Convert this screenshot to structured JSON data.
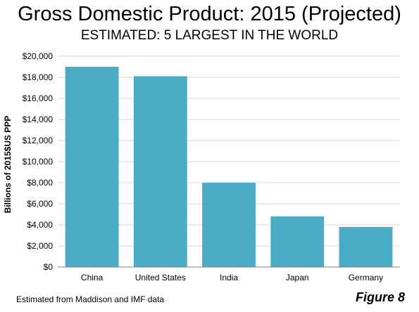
{
  "title": "Gross Domestic Product: 2015 (Projected)",
  "subtitle": "ESTIMATED: 5 LARGEST IN THE WORLD",
  "footnote": "Estimated from Maddison and IMF data",
  "figure_label": "Figure 8",
  "colors": {
    "bar": "#4BACC6",
    "grid": "#D9D9D9",
    "axis": "#808080"
  },
  "chart_data": {
    "type": "bar",
    "title": "Gross Domestic Product: 2015 (Projected)",
    "subtitle": "ESTIMATED: 5 LARGEST IN THE WORLD",
    "xlabel": "",
    "ylabel": "Billions of 2015$US  PPP",
    "categories": [
      "China",
      "United States",
      "India",
      "Japan",
      "Germany"
    ],
    "values": [
      19000,
      18100,
      8000,
      4800,
      3800
    ],
    "ylim": [
      0,
      20000
    ],
    "yticks": [
      0,
      2000,
      4000,
      6000,
      8000,
      10000,
      12000,
      14000,
      16000,
      18000,
      20000
    ],
    "ytick_labels": [
      "$0",
      "$2,000",
      "$4,000",
      "$6,000",
      "$8,000",
      "$10,000",
      "$12,000",
      "$14,000",
      "$16,000",
      "$18,000",
      "$20,000"
    ],
    "grid": true,
    "legend": "none"
  }
}
